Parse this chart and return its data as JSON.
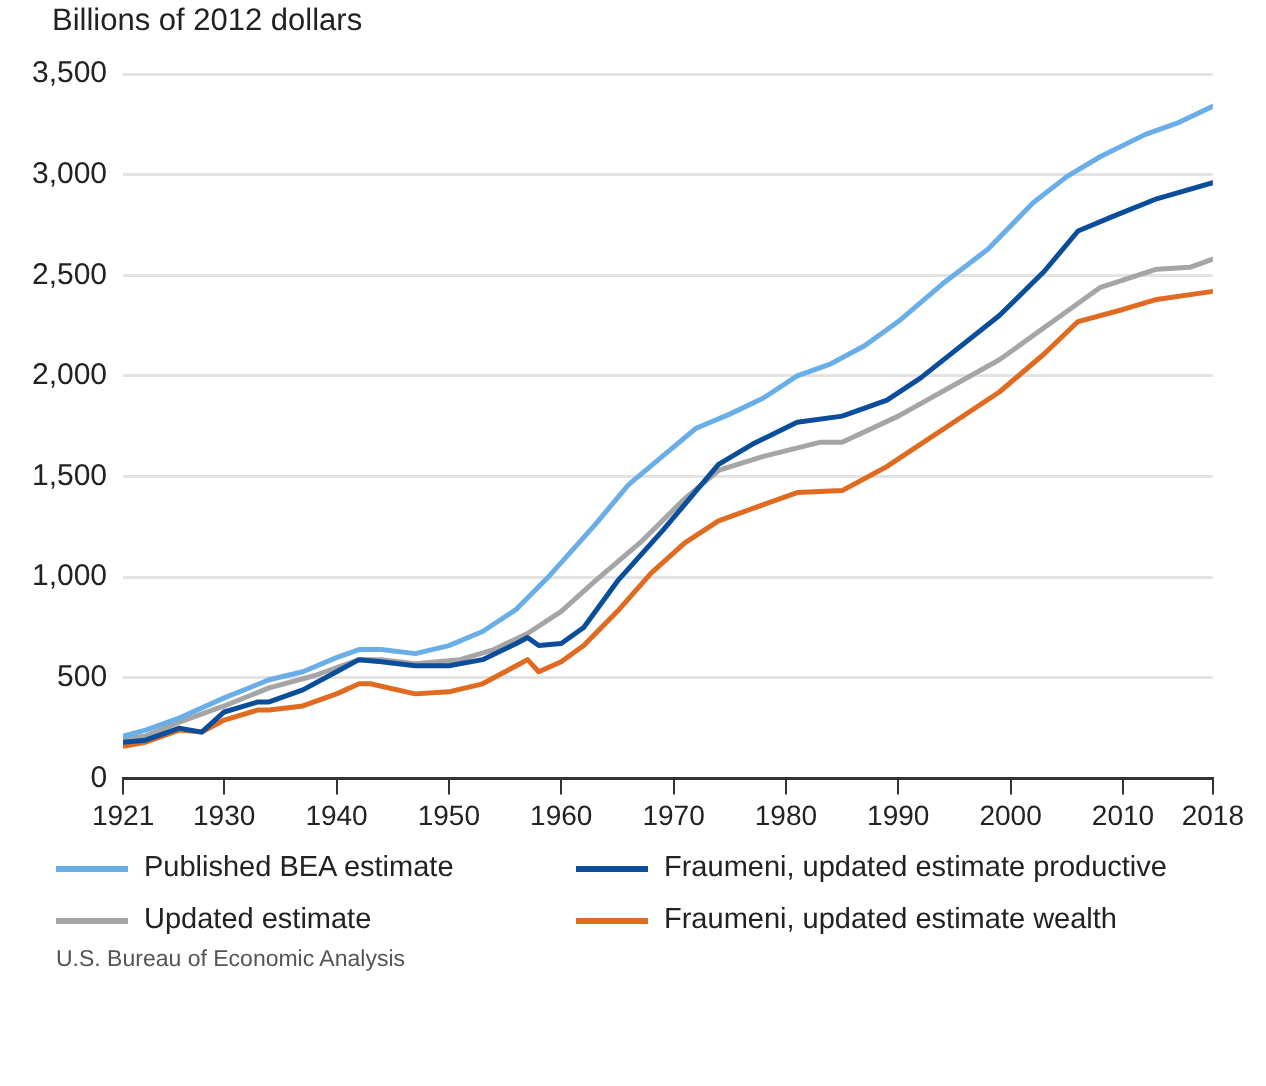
{
  "chart_data": {
    "type": "line",
    "ylabel": "Billions of 2012 dollars",
    "xlim": [
      1921,
      2018
    ],
    "xticks": [
      1921,
      1930,
      1940,
      1950,
      1960,
      1970,
      1980,
      1990,
      2000,
      2010,
      2018
    ],
    "ylim": [
      0,
      3500
    ],
    "yticks": [
      {
        "value": 0,
        "label": "0"
      },
      {
        "value": 500,
        "label": "500"
      },
      {
        "value": 1000,
        "label": "1,000"
      },
      {
        "value": 1500,
        "label": "1,500"
      },
      {
        "value": 2000,
        "label": "2,000"
      },
      {
        "value": 2500,
        "label": "2,500"
      },
      {
        "value": 3000,
        "label": "3,000"
      },
      {
        "value": 3500,
        "label": "3,500"
      }
    ],
    "grid": "y",
    "legend": "bottom",
    "line_style": "solid",
    "marker": "none",
    "annotations": [
      "U.S. Bureau of Economic Analysis"
    ],
    "series": [
      {
        "name": "Published BEA estimate",
        "color": "#6aaee8",
        "x": [
          1921,
          1923,
          1926,
          1930,
          1934,
          1937,
          1940,
          1942,
          1944,
          1947,
          1950,
          1953,
          1956,
          1959,
          1963,
          1966,
          1969,
          1972,
          1975,
          1978,
          1981,
          1984,
          1987,
          1990,
          1994,
          1998,
          2002,
          2005,
          2008,
          2012,
          2015,
          2018
        ],
        "values": [
          210,
          240,
          300,
          400,
          490,
          530,
          600,
          640,
          640,
          620,
          660,
          730,
          840,
          1010,
          1260,
          1460,
          1600,
          1740,
          1810,
          1890,
          2000,
          2060,
          2150,
          2270,
          2460,
          2630,
          2860,
          2990,
          3090,
          3200,
          3260,
          3340
        ]
      },
      {
        "name": "Fraumeni, updated estimate productive",
        "color": "#0a4e9b",
        "x": [
          1921,
          1923,
          1926,
          1928,
          1930,
          1933,
          1934,
          1937,
          1940,
          1942,
          1944,
          1947,
          1950,
          1953,
          1956,
          1957,
          1958,
          1960,
          1962,
          1965,
          1969,
          1974,
          1977,
          1981,
          1985,
          1989,
          1992,
          1999,
          2003,
          2006,
          2009,
          2013,
          2018
        ],
        "values": [
          180,
          190,
          250,
          230,
          330,
          380,
          380,
          440,
          530,
          590,
          580,
          560,
          560,
          590,
          670,
          700,
          660,
          670,
          750,
          980,
          1230,
          1560,
          1660,
          1770,
          1800,
          1880,
          1990,
          2300,
          2520,
          2720,
          2790,
          2880,
          2960
        ]
      },
      {
        "name": "Updated estimate",
        "color": "#a5a5a5",
        "x": [
          1921,
          1923,
          1926,
          1930,
          1934,
          1938,
          1942,
          1944,
          1947,
          1951,
          1954,
          1957,
          1960,
          1963,
          1967,
          1971,
          1974,
          1978,
          1983,
          1985,
          1990,
          1999,
          2003,
          2008,
          2013,
          2016,
          2018
        ],
        "values": [
          200,
          210,
          280,
          360,
          450,
          510,
          590,
          590,
          570,
          590,
          640,
          720,
          830,
          980,
          1170,
          1390,
          1530,
          1600,
          1670,
          1670,
          1800,
          2080,
          2240,
          2440,
          2530,
          2540,
          2580
        ]
      },
      {
        "name": "Fraumeni, updated estimate wealth",
        "color": "#e06a1f",
        "x": [
          1921,
          1923,
          1926,
          1928,
          1930,
          1933,
          1934,
          1937,
          1940,
          1942,
          1943,
          1947,
          1950,
          1953,
          1956,
          1957,
          1958,
          1960,
          1962,
          1965,
          1968,
          1971,
          1974,
          1977,
          1981,
          1985,
          1989,
          1999,
          2003,
          2006,
          2010,
          2013,
          2018
        ],
        "values": [
          160,
          180,
          240,
          230,
          290,
          340,
          340,
          360,
          420,
          470,
          470,
          420,
          430,
          470,
          560,
          590,
          530,
          580,
          660,
          830,
          1020,
          1170,
          1280,
          1340,
          1420,
          1430,
          1550,
          1920,
          2110,
          2270,
          2330,
          2380,
          2420
        ]
      }
    ]
  }
}
